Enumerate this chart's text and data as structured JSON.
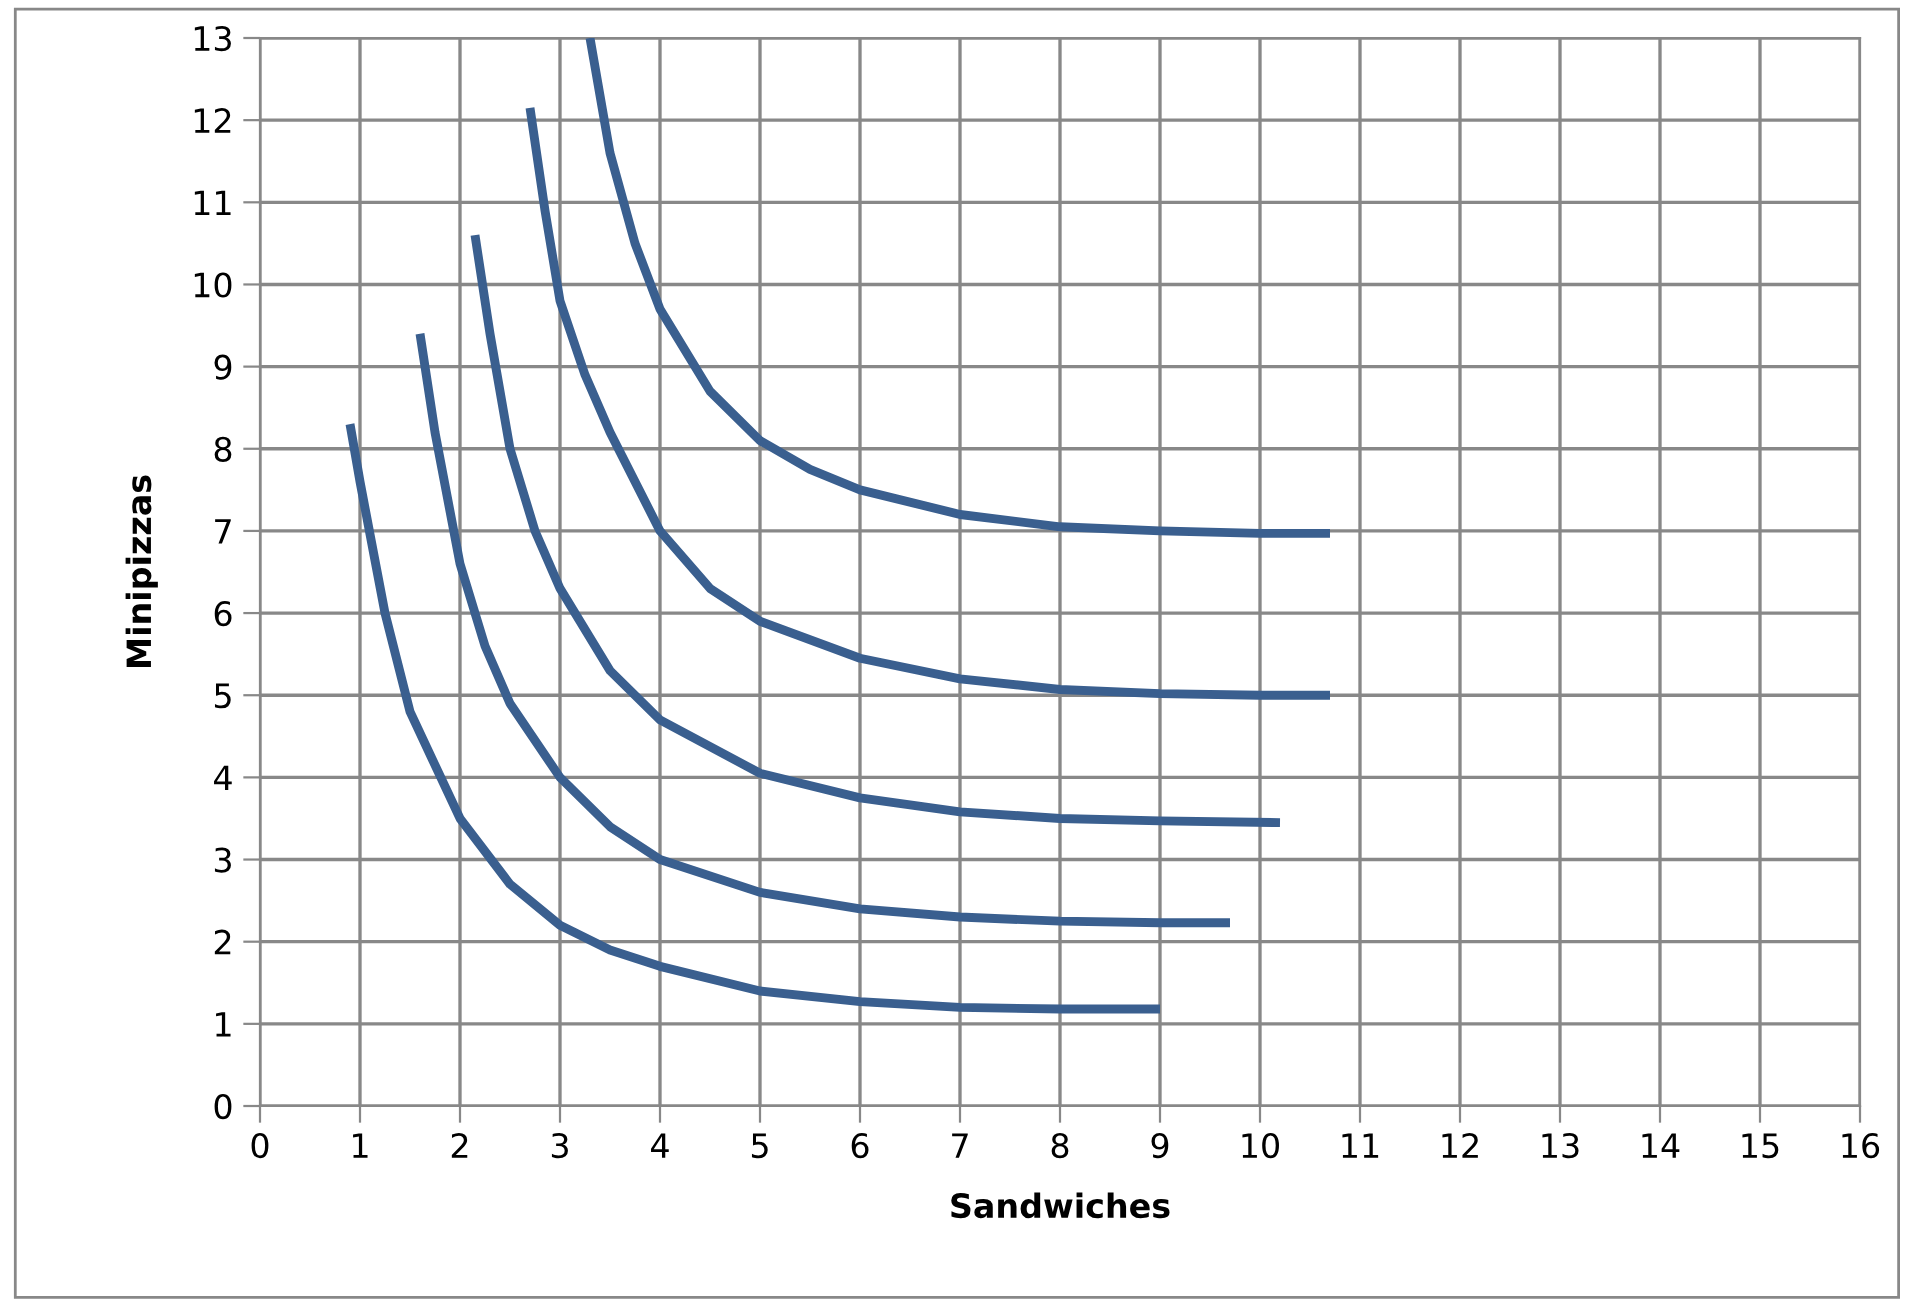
{
  "chart_data": {
    "type": "line",
    "xlabel": "Sandwiches",
    "ylabel": "Minipizzas",
    "xlim": [
      0,
      16
    ],
    "ylim": [
      0,
      13
    ],
    "xticks": [
      0,
      1,
      2,
      3,
      4,
      5,
      6,
      7,
      8,
      9,
      10,
      11,
      12,
      13,
      14,
      15,
      16
    ],
    "yticks": [
      0,
      1,
      2,
      3,
      4,
      5,
      6,
      7,
      8,
      9,
      10,
      11,
      12,
      13
    ],
    "grid": true,
    "marker": "none",
    "line_style": "solid",
    "series": [
      {
        "color": "#3a5f8f",
        "x": [
          0.9,
          1,
          1.25,
          1.5,
          2,
          2.5,
          3,
          3.5,
          4,
          5,
          6,
          7,
          8,
          9
        ],
        "values": [
          8.3,
          7.6,
          6.0,
          4.8,
          3.5,
          2.7,
          2.2,
          1.9,
          1.7,
          1.4,
          1.27,
          1.2,
          1.18,
          1.18
        ]
      },
      {
        "color": "#3a5f8f",
        "x": [
          1.6,
          1.75,
          2,
          2.25,
          2.5,
          3,
          3.5,
          4,
          5,
          6,
          7,
          8,
          9,
          9.7
        ],
        "values": [
          9.4,
          8.2,
          6.6,
          5.6,
          4.9,
          4.0,
          3.4,
          3.0,
          2.6,
          2.4,
          2.3,
          2.25,
          2.23,
          2.23
        ]
      },
      {
        "color": "#3a5f8f",
        "x": [
          2.15,
          2.3,
          2.5,
          2.75,
          3,
          3.5,
          4,
          5,
          6,
          7,
          8,
          9,
          10.2
        ],
        "values": [
          10.6,
          9.4,
          8.0,
          7.0,
          6.3,
          5.3,
          4.7,
          4.05,
          3.75,
          3.58,
          3.5,
          3.47,
          3.45
        ]
      },
      {
        "color": "#3a5f8f",
        "x": [
          2.7,
          2.85,
          3,
          3.25,
          3.5,
          4,
          4.5,
          5,
          6,
          7,
          8,
          9,
          10,
          10.7
        ],
        "values": [
          12.15,
          10.9,
          9.8,
          8.9,
          8.2,
          7.0,
          6.3,
          5.9,
          5.45,
          5.2,
          5.07,
          5.02,
          5.0,
          5.0
        ]
      },
      {
        "color": "#3a5f8f",
        "x": [
          3.3,
          3.5,
          3.75,
          4,
          4.5,
          5,
          5.5,
          6,
          7,
          8,
          9,
          10,
          10.7
        ],
        "values": [
          13.0,
          11.6,
          10.5,
          9.7,
          8.7,
          8.1,
          7.75,
          7.5,
          7.2,
          7.05,
          7.0,
          6.97,
          6.97
        ]
      }
    ]
  }
}
